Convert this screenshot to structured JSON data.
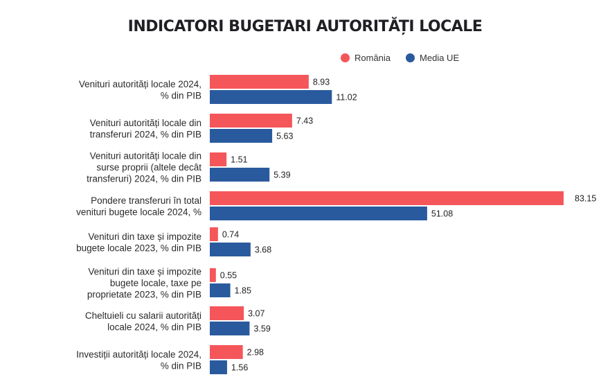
{
  "chart_data": {
    "type": "bar",
    "orientation": "horizontal",
    "title": "INDICATORI BUGETARI AUTORITĂȚI LOCALE",
    "xlabel": "",
    "ylabel": "",
    "legend_position": "top-right",
    "grid": false,
    "categories": [
      [
        "Venituri autorități locale 2024,",
        "% din PIB"
      ],
      [
        "Venituri autorități locale din",
        "transferuri 2024, % din PIB"
      ],
      [
        "Venituri autorități locale din",
        "surse proprii (altele decât",
        "transferuri) 2024, % din PIB"
      ],
      [
        "Pondere transferuri în total",
        "venituri bugete locale 2024, %"
      ],
      [
        "Venituri din taxe și impozite",
        "bugete locale 2023, % din PIB"
      ],
      [
        "Venituri din taxe și impozite",
        "bugete locale, taxe pe",
        "proprietate 2023, % din PIB"
      ],
      [
        "Cheltuieli cu salarii autorități",
        "locale 2024, % din PIB"
      ],
      [
        "Investiții autorități locale 2024,",
        "% din PIB"
      ]
    ],
    "series": [
      {
        "name": "România",
        "color": "#f4565a",
        "values": [
          8.93,
          7.43,
          1.51,
          83.15,
          0.74,
          0.55,
          3.07,
          2.98
        ],
        "labels": [
          "8.93",
          "7.43",
          "1.51",
          "83.15",
          "0.74",
          "0.55",
          "3.07",
          "2.98"
        ]
      },
      {
        "name": "Media UE",
        "color": "#2a5a9e",
        "values": [
          11.02,
          5.63,
          5.39,
          51.08,
          3.68,
          1.85,
          3.59,
          1.56
        ],
        "labels": [
          "11.02",
          "5.63",
          "5.39",
          "51.08",
          "3.68",
          "1.85",
          "3.59",
          "1.56"
        ]
      }
    ]
  }
}
